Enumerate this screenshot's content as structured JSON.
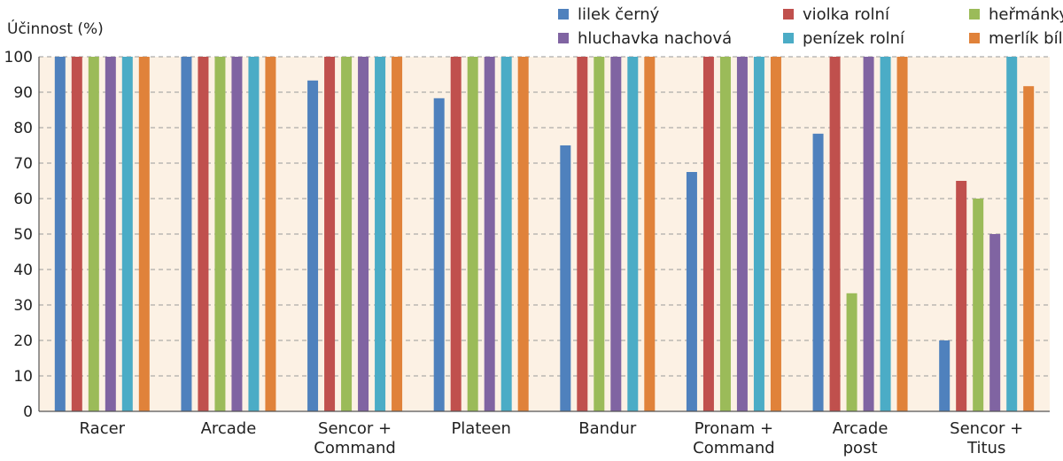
{
  "chart_data": {
    "type": "bar",
    "ylabel": "Účinnost (%)",
    "ylim": [
      0,
      100
    ],
    "yticks": [
      0,
      10,
      20,
      30,
      40,
      50,
      60,
      70,
      80,
      90,
      100
    ],
    "grid": true,
    "legend_position": "top-right",
    "background_color": "#fcf1e4",
    "categories": [
      [
        "Racer"
      ],
      [
        "Arcade"
      ],
      [
        "Sencor  +",
        "Command"
      ],
      [
        "Plateen"
      ],
      [
        "Bandur"
      ],
      [
        "Pronam +",
        "Command"
      ],
      [
        "Arcade",
        "post"
      ],
      [
        "Sencor  +",
        "Titus"
      ]
    ],
    "series": [
      {
        "name": "lilek černý",
        "color": "#4f81bd",
        "values": [
          100,
          100,
          93.3,
          88.3,
          75,
          67.5,
          78.3,
          20
        ]
      },
      {
        "name": "violka rolní",
        "color": "#c0504d",
        "values": [
          100,
          100,
          100,
          100,
          100,
          100,
          100,
          65
        ]
      },
      {
        "name": "heřmánky",
        "color": "#9bbb59",
        "values": [
          100,
          100,
          100,
          100,
          100,
          100,
          33.3,
          60
        ]
      },
      {
        "name": "hluchavka nachová",
        "color": "#8064a2",
        "values": [
          100,
          100,
          100,
          100,
          100,
          100,
          100,
          50
        ]
      },
      {
        "name": "penízek rolní",
        "color": "#4bacc6",
        "values": [
          100,
          100,
          100,
          100,
          100,
          100,
          100,
          100
        ]
      },
      {
        "name": "merlík bílý",
        "color": "#e0823a",
        "values": [
          100,
          100,
          100,
          100,
          100,
          100,
          100,
          91.7
        ]
      }
    ]
  }
}
